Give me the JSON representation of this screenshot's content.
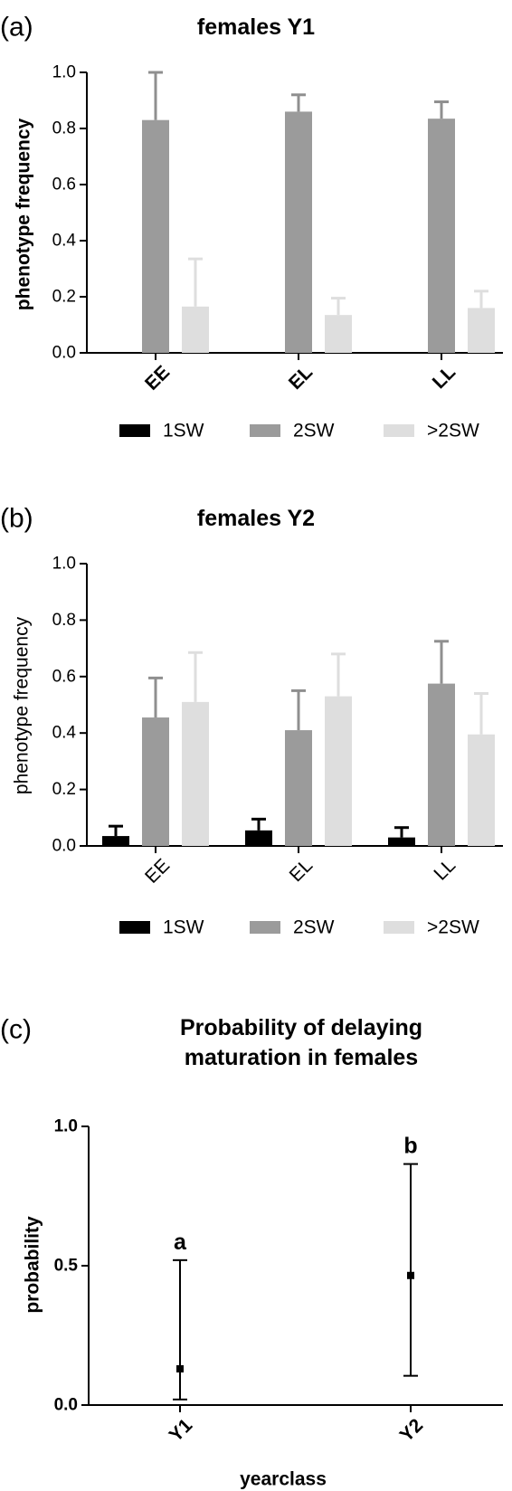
{
  "colors": {
    "1SW": "#000000",
    "2SW": "#9b9b9b",
    ">2SW": "#dedede",
    "error_1SW": "#000000",
    "error_2SW": "#8f8f8f",
    "error_>2SW": "#dedede",
    "axis": "#000000"
  },
  "chart_data": [
    {
      "panel": "(a)",
      "type": "bar",
      "title": "females Y1",
      "ylabel": "phenotype frequency",
      "xlabel": "",
      "ylim": [
        0,
        1.0
      ],
      "yticks": [
        "0.0",
        "0.2",
        "0.4",
        "0.6",
        "0.8",
        "1.0"
      ],
      "categories": [
        "EE",
        "EL",
        "LL"
      ],
      "series": [
        {
          "name": "1SW",
          "values": [
            0,
            0,
            0
          ],
          "error": [
            0,
            0,
            0
          ]
        },
        {
          "name": "2SW",
          "values": [
            0.83,
            0.86,
            0.835
          ],
          "error": [
            0.17,
            0.06,
            0.06
          ]
        },
        {
          "name": ">2SW",
          "values": [
            0.165,
            0.135,
            0.16
          ],
          "error": [
            0.17,
            0.06,
            0.06
          ]
        }
      ],
      "grid": false,
      "legend": "bottom"
    },
    {
      "panel": "(b)",
      "type": "bar",
      "title": "females Y2",
      "ylabel": "phenotype frequency",
      "xlabel": "",
      "ylim": [
        0,
        1.0
      ],
      "yticks": [
        "0.0",
        "0.2",
        "0.4",
        "0.6",
        "0.8",
        "1.0"
      ],
      "categories": [
        "EE",
        "EL",
        "LL"
      ],
      "series": [
        {
          "name": "1SW",
          "values": [
            0.035,
            0.055,
            0.03
          ],
          "error": [
            0.035,
            0.04,
            0.035
          ]
        },
        {
          "name": "2SW",
          "values": [
            0.455,
            0.41,
            0.575
          ],
          "error": [
            0.14,
            0.14,
            0.15
          ]
        },
        {
          "name": ">2SW",
          "values": [
            0.51,
            0.53,
            0.395
          ],
          "error": [
            0.175,
            0.15,
            0.145
          ]
        }
      ],
      "grid": false,
      "legend": "bottom"
    },
    {
      "panel": "(c)",
      "type": "scatter",
      "title": "Probability of delaying maturation in females",
      "title_lines": [
        "Probability of delaying",
        "maturation in females"
      ],
      "ylabel": "probability",
      "xlabel": "yearclass",
      "ylim": [
        0,
        1.0
      ],
      "yticks": [
        "0.0",
        "0.5",
        "1.0"
      ],
      "categories": [
        "Y1",
        "Y2"
      ],
      "points": [
        {
          "x": "Y1",
          "y": 0.13,
          "lower": 0.02,
          "upper": 0.52,
          "label": "a"
        },
        {
          "x": "Y2",
          "y": 0.465,
          "lower": 0.105,
          "upper": 0.865,
          "label": "b"
        }
      ],
      "grid": false
    }
  ]
}
